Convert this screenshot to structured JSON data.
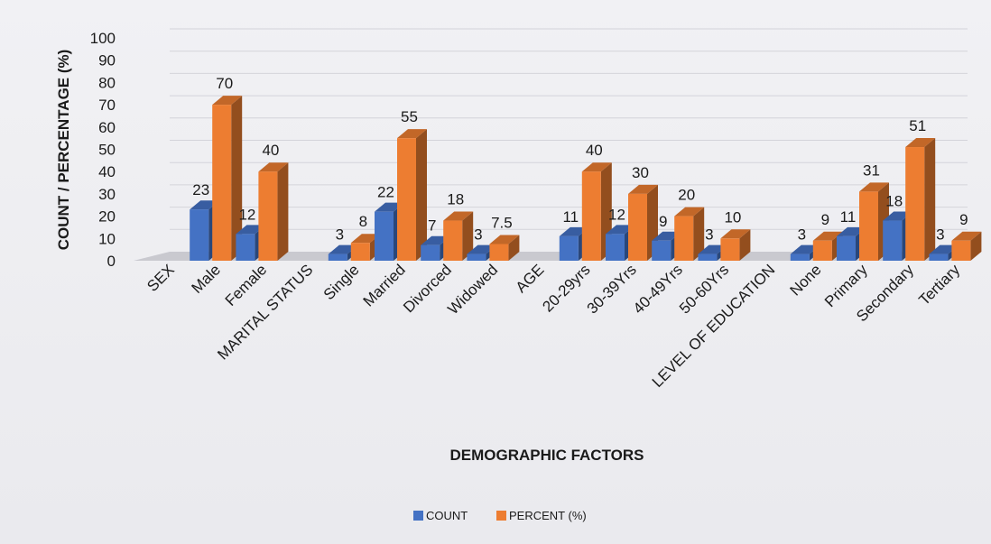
{
  "chart_data": {
    "type": "bar",
    "xlabel": "DEMOGRAPHIC FACTORS",
    "ylabel": "COUNT / PERCENTAGE (%)",
    "ylim": [
      0,
      100
    ],
    "yticks": [
      0,
      10,
      20,
      30,
      40,
      50,
      60,
      70,
      80,
      90,
      100
    ],
    "grid": true,
    "legend_position": "bottom",
    "categories": [
      "SEX",
      "Male",
      "Female",
      "MARITAL STATUS",
      "Single",
      "Married",
      "Divorced",
      "Widowed",
      "AGE",
      "20-29yrs",
      "30-39Yrs",
      "40-49Yrs",
      "50-60Yrs",
      "LEVEL OF EDUCATION",
      "None",
      "Primary",
      "Secondary",
      "Tertiary"
    ],
    "series": [
      {
        "name": "COUNT",
        "color": "#4472c4",
        "values": [
          null,
          23,
          12,
          null,
          3,
          22,
          7,
          3,
          null,
          11,
          12,
          9,
          3,
          null,
          3,
          11,
          18,
          3
        ]
      },
      {
        "name": "PERCENT (%)",
        "color": "#ed7d31",
        "values": [
          null,
          70,
          40,
          null,
          8,
          55,
          18,
          7.5,
          null,
          40,
          30,
          20,
          10,
          null,
          9,
          31,
          51,
          9
        ]
      }
    ]
  }
}
